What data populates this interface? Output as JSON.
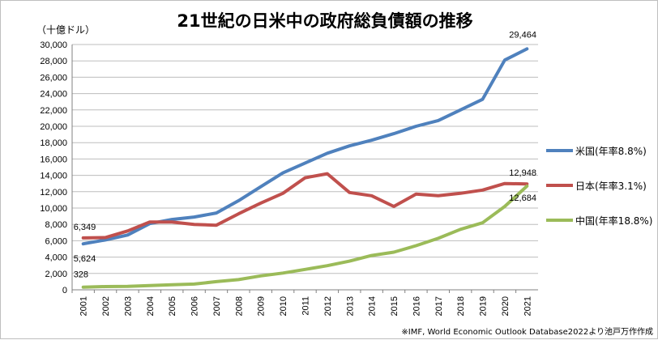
{
  "chart_data": {
    "type": "line",
    "title": "21世紀の日米中の政府総負債額の推移",
    "unit_label": "（十億ドル）",
    "source": "※IMF, World Economic Outlook Database2022より池戸万作作成",
    "categories": [
      "2001",
      "2002",
      "2003",
      "2004",
      "2005",
      "2006",
      "2007",
      "2008",
      "2009",
      "2010",
      "2011",
      "2012",
      "2013",
      "2014",
      "2015",
      "2016",
      "2017",
      "2018",
      "2019",
      "2020",
      "2021"
    ],
    "ylim": [
      0,
      30000
    ],
    "yticks": [
      "0",
      "2,000",
      "4,000",
      "6,000",
      "8,000",
      "10,000",
      "12,000",
      "14,000",
      "16,000",
      "18,000",
      "20,000",
      "22,000",
      "24,000",
      "26,000",
      "28,000",
      "30,000"
    ],
    "grid": true,
    "legend_position": "right",
    "series": [
      {
        "name": "米国(年率8.8%)",
        "color": "#4f81bd",
        "values": [
          5624,
          6100,
          6700,
          8100,
          8600,
          8900,
          9400,
          10900,
          12600,
          14300,
          15500,
          16700,
          17600,
          18300,
          19100,
          20000,
          20700,
          22000,
          23300,
          28100,
          29464
        ],
        "labels": [
          {
            "index": 0,
            "text": "5,624"
          },
          {
            "index": 20,
            "text": "29,464"
          }
        ]
      },
      {
        "name": "日本(年率3.1%)",
        "color": "#c0504d",
        "values": [
          6349,
          6400,
          7200,
          8300,
          8300,
          8000,
          7900,
          9300,
          10600,
          11800,
          13700,
          14200,
          11900,
          11500,
          10200,
          11700,
          11500,
          11800,
          12200,
          13000,
          12948
        ],
        "labels": [
          {
            "index": 0,
            "text": "6,349"
          },
          {
            "index": 20,
            "text": "12,948"
          }
        ]
      },
      {
        "name": "中国(年率18.8%)",
        "color": "#9bbb59",
        "values": [
          328,
          400,
          420,
          520,
          620,
          700,
          1000,
          1250,
          1700,
          2050,
          2500,
          2950,
          3500,
          4200,
          4600,
          5400,
          6300,
          7400,
          8200,
          10200,
          12684
        ],
        "labels": [
          {
            "index": 0,
            "text": "328"
          },
          {
            "index": 20,
            "text": "12,684"
          }
        ]
      }
    ]
  }
}
